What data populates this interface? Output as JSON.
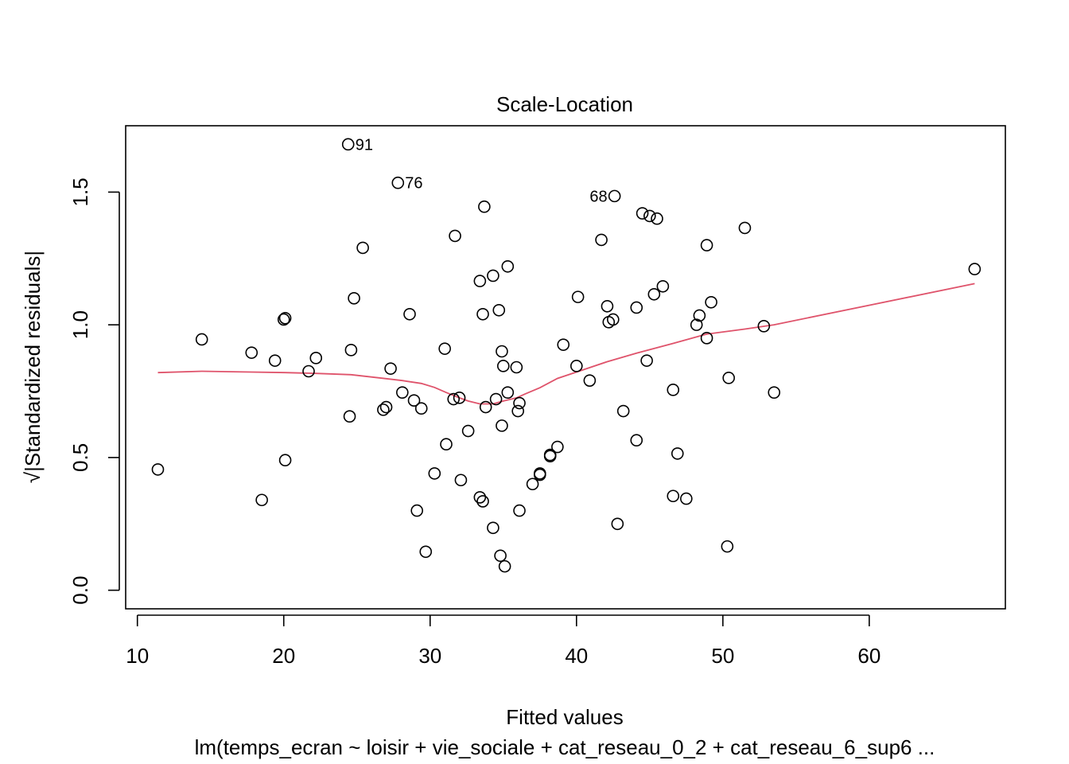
{
  "chart_data": {
    "type": "scatter",
    "title": "Scale-Location",
    "xlabel": "Fitted values",
    "ylabel": "√|Standardized residuals|",
    "subtitle": "lm(temps_ecran ~ loisir + vie_sociale + cat_reseau_0_2 + cat_reseau_6_sup6  ...",
    "xlim": [
      9.2,
      69.3
    ],
    "ylim": [
      -0.07,
      1.75
    ],
    "x_ticks": [
      10,
      20,
      30,
      40,
      50,
      60
    ],
    "y_ticks": [
      0.0,
      0.5,
      1.0,
      1.5
    ],
    "x_tick_labels": [
      "10",
      "20",
      "30",
      "40",
      "50",
      "60"
    ],
    "y_tick_labels": [
      "0.0",
      "0.5",
      "1.0",
      "1.5"
    ],
    "grid": false,
    "points": [
      [
        11.4,
        0.455
      ],
      [
        14.4,
        0.945
      ],
      [
        17.8,
        0.895
      ],
      [
        18.5,
        0.34
      ],
      [
        19.4,
        0.865
      ],
      [
        20.0,
        1.02
      ],
      [
        20.1,
        1.025
      ],
      [
        20.1,
        0.49
      ],
      [
        21.7,
        0.825
      ],
      [
        22.2,
        0.875
      ],
      [
        24.5,
        0.655
      ],
      [
        24.6,
        0.905
      ],
      [
        24.8,
        1.1
      ],
      [
        25.4,
        1.29
      ],
      [
        26.8,
        0.68
      ],
      [
        27.0,
        0.69
      ],
      [
        27.3,
        0.835
      ],
      [
        28.1,
        0.745
      ],
      [
        28.6,
        1.04
      ],
      [
        28.9,
        0.715
      ],
      [
        29.1,
        0.3
      ],
      [
        29.4,
        0.685
      ],
      [
        29.7,
        0.145
      ],
      [
        30.3,
        0.44
      ],
      [
        31.0,
        0.91
      ],
      [
        31.1,
        0.55
      ],
      [
        31.6,
        0.72
      ],
      [
        31.7,
        1.335
      ],
      [
        32.0,
        0.725
      ],
      [
        32.1,
        0.415
      ],
      [
        32.6,
        0.6
      ],
      [
        33.4,
        0.35
      ],
      [
        33.4,
        1.165
      ],
      [
        33.6,
        0.335
      ],
      [
        33.6,
        1.04
      ],
      [
        33.7,
        1.445
      ],
      [
        33.8,
        0.69
      ],
      [
        34.3,
        1.185
      ],
      [
        34.3,
        0.235
      ],
      [
        34.5,
        0.72
      ],
      [
        34.7,
        1.055
      ],
      [
        34.8,
        0.13
      ],
      [
        34.9,
        0.62
      ],
      [
        34.9,
        0.9
      ],
      [
        35.0,
        0.845
      ],
      [
        35.1,
        0.09
      ],
      [
        35.3,
        1.22
      ],
      [
        35.3,
        0.745
      ],
      [
        35.9,
        0.84
      ],
      [
        36.0,
        0.675
      ],
      [
        36.1,
        0.705
      ],
      [
        36.1,
        0.3
      ],
      [
        37.0,
        0.4
      ],
      [
        37.5,
        0.435
      ],
      [
        37.5,
        0.44
      ],
      [
        38.2,
        0.505
      ],
      [
        38.2,
        0.51
      ],
      [
        38.7,
        0.54
      ],
      [
        39.1,
        0.925
      ],
      [
        40.0,
        0.845
      ],
      [
        40.1,
        1.105
      ],
      [
        40.9,
        0.79
      ],
      [
        41.7,
        1.32
      ],
      [
        42.1,
        1.07
      ],
      [
        42.2,
        1.01
      ],
      [
        42.6,
        1.485
      ],
      [
        42.5,
        1.02
      ],
      [
        42.8,
        0.25
      ],
      [
        43.2,
        0.675
      ],
      [
        44.1,
        0.565
      ],
      [
        44.1,
        1.065
      ],
      [
        44.5,
        1.42
      ],
      [
        44.8,
        0.865
      ],
      [
        45.0,
        1.41
      ],
      [
        45.3,
        1.115
      ],
      [
        45.5,
        1.4
      ],
      [
        45.9,
        1.145
      ],
      [
        46.6,
        0.755
      ],
      [
        46.6,
        0.355
      ],
      [
        46.9,
        0.515
      ],
      [
        47.5,
        0.345
      ],
      [
        48.2,
        1.0
      ],
      [
        48.4,
        1.035
      ],
      [
        48.9,
        0.95
      ],
      [
        48.9,
        1.3
      ],
      [
        49.2,
        1.085
      ],
      [
        50.3,
        0.165
      ],
      [
        50.4,
        0.8
      ],
      [
        51.5,
        1.365
      ],
      [
        52.8,
        0.995
      ],
      [
        53.5,
        0.745
      ],
      [
        67.2,
        1.21
      ],
      [
        24.4,
        1.68
      ],
      [
        27.8,
        1.535
      ]
    ],
    "point_labels": [
      {
        "text": "91",
        "x": 24.4,
        "y": 1.68,
        "side": "right"
      },
      {
        "text": "76",
        "x": 27.8,
        "y": 1.535,
        "side": "right"
      },
      {
        "text": "68",
        "x": 42.6,
        "y": 1.485,
        "side": "left"
      }
    ],
    "smoother": {
      "color": "#DF536B",
      "x": [
        11.4,
        14.4,
        17.8,
        20.1,
        22.2,
        24.6,
        27.0,
        28.1,
        29.4,
        30.3,
        31.1,
        32.0,
        32.6,
        33.4,
        34.3,
        35.0,
        35.9,
        36.5,
        37.5,
        38.7,
        40.0,
        42.1,
        44.1,
        46.6,
        48.9,
        51.5,
        53.5,
        67.2
      ],
      "y": [
        0.82,
        0.825,
        0.822,
        0.82,
        0.817,
        0.812,
        0.797,
        0.79,
        0.779,
        0.764,
        0.745,
        0.725,
        0.713,
        0.702,
        0.702,
        0.713,
        0.725,
        0.74,
        0.763,
        0.798,
        0.822,
        0.861,
        0.893,
        0.93,
        0.965,
        0.984,
        1.0,
        1.155
      ]
    }
  }
}
